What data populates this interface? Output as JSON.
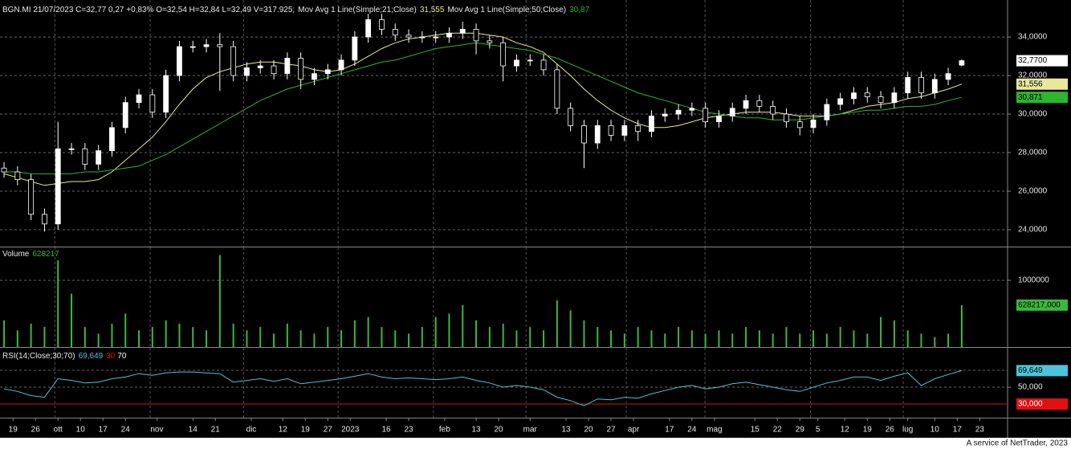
{
  "chart_data": [
    {
      "type": "candlestick",
      "header": "BGN.MI 21/07/2023 C=32,77 0,27 +0,83% O=32,54 H=32,84 L=32,49 V=317.925;",
      "x": [
        0,
        3,
        6,
        9,
        12,
        15,
        18,
        21,
        24,
        27,
        30,
        33,
        36,
        39,
        42,
        45,
        48,
        51,
        54,
        57,
        60,
        63,
        66,
        69,
        72,
        75,
        78,
        81,
        84,
        87,
        90,
        93,
        96,
        99,
        102,
        105,
        108,
        111,
        114,
        117,
        120,
        123,
        126,
        129,
        132,
        135,
        138,
        141,
        144,
        147,
        150,
        153,
        156,
        159,
        162,
        165,
        168,
        171,
        174,
        177,
        180,
        183,
        186,
        189,
        192,
        195,
        198,
        201,
        204,
        207,
        210,
        213
      ],
      "open": [
        27.2,
        27.0,
        26.6,
        24.8,
        24.3,
        28.2,
        28.2,
        27.4,
        28.1,
        29.3,
        30.6,
        31.0,
        30.1,
        32.0,
        33.5,
        33.5,
        33.6,
        33.5,
        32.0,
        32.4,
        32.5,
        32.1,
        32.9,
        31.8,
        32.1,
        32.3,
        32.8,
        34.0,
        34.9,
        34.4,
        34.1,
        34.0,
        34.0,
        34.0,
        34.2,
        34.4,
        33.8,
        33.7,
        32.5,
        32.8,
        32.8,
        32.3,
        30.3,
        29.4,
        28.5,
        29.4,
        28.9,
        29.4,
        29.1,
        29.9,
        30.0,
        30.2,
        30.3,
        29.6,
        29.9,
        30.3,
        30.7,
        30.4,
        30.0,
        29.6,
        29.3,
        29.7,
        30.5,
        30.8,
        31.1,
        30.9,
        30.6,
        31.1,
        31.9,
        31.1,
        31.8,
        32.54
      ],
      "high": [
        27.5,
        27.3,
        26.9,
        25.1,
        29.6,
        28.5,
        28.5,
        28.4,
        29.6,
        30.9,
        31.3,
        31.3,
        32.3,
        33.8,
        33.8,
        33.9,
        34.2,
        33.8,
        32.7,
        32.8,
        32.8,
        33.2,
        33.2,
        32.4,
        32.6,
        33.1,
        34.3,
        35.2,
        35.2,
        34.7,
        34.4,
        34.3,
        34.3,
        34.5,
        34.8,
        34.7,
        34.1,
        34.0,
        33.1,
        33.1,
        33.1,
        32.6,
        30.6,
        29.7,
        29.7,
        29.7,
        29.7,
        29.7,
        30.2,
        30.3,
        30.5,
        30.6,
        30.6,
        30.2,
        30.6,
        31.0,
        31.0,
        30.7,
        30.3,
        29.9,
        30.0,
        30.8,
        31.1,
        31.4,
        31.4,
        31.2,
        31.4,
        32.2,
        32.2,
        32.1,
        32.4,
        32.84
      ],
      "low": [
        26.7,
        26.3,
        24.5,
        23.9,
        24.0,
        27.9,
        27.1,
        27.1,
        27.8,
        29.0,
        30.3,
        29.8,
        29.8,
        31.7,
        33.2,
        33.2,
        31.2,
        31.7,
        31.7,
        32.1,
        31.8,
        31.8,
        31.3,
        31.5,
        31.8,
        32.0,
        32.5,
        33.7,
        34.1,
        33.8,
        33.7,
        33.7,
        33.7,
        33.7,
        33.9,
        33.1,
        33.4,
        31.7,
        32.2,
        32.5,
        32.0,
        30.0,
        29.1,
        27.2,
        28.2,
        28.6,
        28.6,
        28.6,
        28.8,
        29.6,
        29.7,
        29.9,
        29.3,
        29.3,
        29.6,
        30.0,
        30.1,
        29.7,
        29.3,
        28.9,
        29.0,
        29.4,
        30.2,
        30.5,
        30.6,
        30.3,
        30.3,
        30.8,
        30.8,
        30.8,
        31.5,
        32.49
      ],
      "close": [
        27.0,
        26.6,
        24.8,
        24.3,
        28.2,
        28.2,
        27.4,
        28.1,
        29.3,
        30.6,
        31.0,
        30.1,
        32.0,
        33.5,
        33.5,
        33.6,
        33.5,
        32.0,
        32.4,
        32.5,
        32.1,
        32.9,
        31.8,
        32.1,
        32.3,
        32.8,
        34.0,
        34.9,
        34.4,
        34.1,
        34.0,
        34.0,
        34.0,
        34.2,
        34.4,
        33.8,
        33.7,
        32.5,
        32.8,
        32.8,
        32.3,
        30.3,
        29.4,
        28.5,
        29.4,
        28.9,
        29.4,
        29.1,
        29.9,
        30.0,
        30.2,
        30.3,
        29.6,
        29.9,
        30.3,
        30.7,
        30.4,
        30.0,
        29.6,
        29.3,
        29.7,
        30.5,
        30.8,
        31.1,
        30.9,
        30.6,
        31.1,
        31.9,
        31.1,
        31.8,
        32.1,
        32.77
      ],
      "close_last_label": "32,7700",
      "color_up": "#ffffff",
      "color_down": "#000000",
      "series": [
        {
          "name": "Mov Avg 1 Line(Simple;21;Close)",
          "color": "#e8e89a",
          "value_label": "31,555",
          "box_label": "31,556",
          "values": [
            26.9,
            26.7,
            26.5,
            26.3,
            26.4,
            26.5,
            26.5,
            26.6,
            27.0,
            27.6,
            28.2,
            28.8,
            29.6,
            30.5,
            31.3,
            31.9,
            32.2,
            32.4,
            32.6,
            32.7,
            32.7,
            32.6,
            32.5,
            32.3,
            32.2,
            32.3,
            32.6,
            33.0,
            33.4,
            33.7,
            33.9,
            34.0,
            34.1,
            34.2,
            34.2,
            34.2,
            34.1,
            34.0,
            33.7,
            33.5,
            33.2,
            32.6,
            32.0,
            31.3,
            30.7,
            30.2,
            29.8,
            29.5,
            29.3,
            29.3,
            29.4,
            29.6,
            29.8,
            29.9,
            30.0,
            30.1,
            30.1,
            30.1,
            30.0,
            29.9,
            29.9,
            29.9,
            30.0,
            30.2,
            30.4,
            30.5,
            30.6,
            30.8,
            30.9,
            31.1,
            31.3,
            31.555
          ]
        },
        {
          "name": "Mov Avg 1 Line(Simple;50;Close)",
          "color": "#2db52d",
          "value_label": "30,87",
          "box_label": "30,871",
          "values": [
            27.0,
            27.0,
            26.9,
            26.9,
            26.9,
            26.9,
            27.0,
            27.0,
            27.1,
            27.2,
            27.3,
            27.6,
            27.9,
            28.3,
            28.7,
            29.1,
            29.5,
            29.9,
            30.3,
            30.7,
            31.0,
            31.3,
            31.5,
            31.7,
            31.9,
            32.1,
            32.3,
            32.5,
            32.7,
            32.8,
            33.0,
            33.2,
            33.4,
            33.5,
            33.6,
            33.7,
            33.6,
            33.5,
            33.4,
            33.3,
            33.1,
            32.9,
            32.6,
            32.3,
            32.0,
            31.7,
            31.4,
            31.1,
            30.9,
            30.7,
            30.5,
            30.3,
            30.1,
            30.0,
            29.9,
            29.8,
            29.8,
            29.7,
            29.7,
            29.7,
            29.8,
            29.9,
            30.0,
            30.1,
            30.2,
            30.2,
            30.3,
            30.4,
            30.4,
            30.5,
            30.7,
            30.87
          ]
        }
      ],
      "xlim": [
        -0.9,
        223.2
      ],
      "ylim": [
        23.125,
        35.92
      ],
      "yticks": [
        {
          "value": 24,
          "label": "24,0000"
        },
        {
          "value": 26,
          "label": "26,0000"
        },
        {
          "value": 28,
          "label": "28,0000"
        },
        {
          "value": 30,
          "label": "30,0000"
        },
        {
          "value": 32,
          "label": "32,0000"
        },
        {
          "value": 34,
          "label": "34,0000"
        }
      ],
      "grid": true,
      "xgrid": [
        11.3,
        32.5,
        53.3,
        74.3,
        95.5,
        116.1,
        138.4,
        155.9,
        179.4,
        200.0
      ]
    },
    {
      "type": "bar",
      "title": "Volume",
      "value_label": "628217",
      "box_label": "628217,000",
      "color": "#3cb83c",
      "values": [
        400000,
        250000,
        350000,
        300000,
        1300000,
        800000,
        300000,
        200000,
        350000,
        500000,
        250000,
        300000,
        400000,
        350000,
        300000,
        250000,
        1380000,
        350000,
        250000,
        300000,
        200000,
        350000,
        250000,
        200000,
        300000,
        250000,
        400000,
        450000,
        300000,
        250000,
        200000,
        300000,
        450000,
        500000,
        630000,
        400000,
        300000,
        350000,
        250000,
        300000,
        250000,
        700000,
        550000,
        400000,
        300000,
        250000,
        200000,
        300000,
        250000,
        200000,
        300000,
        250000,
        200000,
        250000,
        200000,
        300000,
        250000,
        200000,
        300000,
        200000,
        250000,
        200000,
        300000,
        250000,
        200000,
        450000,
        400000,
        250000,
        200000,
        150000,
        200000,
        628217
      ],
      "ylim": [
        0,
        1494000
      ],
      "yticks": [
        1000000
      ]
    },
    {
      "type": "line",
      "title": "RSI(14;Close;30;70)",
      "color": "#4fc3d9",
      "value_label": "69,649",
      "box_label": "69,649",
      "values": [
        48,
        45,
        40,
        38,
        60,
        58,
        55,
        56,
        60,
        62,
        66,
        64,
        67,
        68,
        68,
        67,
        66,
        56,
        58,
        60,
        57,
        60,
        54,
        56,
        58,
        60,
        63,
        66,
        62,
        60,
        61,
        60,
        59,
        60,
        62,
        58,
        55,
        50,
        52,
        50,
        47,
        38,
        34,
        28,
        36,
        35,
        38,
        37,
        42,
        46,
        50,
        52,
        48,
        50,
        54,
        56,
        53,
        50,
        47,
        45,
        50,
        55,
        58,
        62,
        62,
        58,
        63,
        67,
        52,
        60,
        65,
        69.649
      ],
      "levels": [
        {
          "value": 30,
          "label": "30,000",
          "color": "#e01010"
        },
        {
          "value": 70,
          "label": "70",
          "color": "#ffffff"
        }
      ],
      "ylim": [
        13.8,
        96.7
      ],
      "yticks": [
        {
          "value": 50,
          "label": "50,000"
        }
      ],
      "xticks": [
        {
          "value": 2,
          "label": "19"
        },
        {
          "value": 7,
          "label": "26"
        },
        {
          "value": 12,
          "label": "ott"
        },
        {
          "value": 17,
          "label": "10"
        },
        {
          "value": 22,
          "label": "17"
        },
        {
          "value": 27,
          "label": "24"
        },
        {
          "value": 34,
          "label": "nov"
        },
        {
          "value": 42,
          "label": "14"
        },
        {
          "value": 47,
          "label": "21"
        },
        {
          "value": 55,
          "label": "dic"
        },
        {
          "value": 62,
          "label": "12"
        },
        {
          "value": 67,
          "label": "19"
        },
        {
          "value": 72,
          "label": "27"
        },
        {
          "value": 77,
          "label": "2023"
        },
        {
          "value": 85,
          "label": "16"
        },
        {
          "value": 90,
          "label": "23"
        },
        {
          "value": 98,
          "label": "feb"
        },
        {
          "value": 105,
          "label": "13"
        },
        {
          "value": 110,
          "label": "20"
        },
        {
          "value": 117,
          "label": "mar"
        },
        {
          "value": 125,
          "label": "13"
        },
        {
          "value": 130,
          "label": "20"
        },
        {
          "value": 135,
          "label": "27"
        },
        {
          "value": 140,
          "label": "apr"
        },
        {
          "value": 148,
          "label": "17"
        },
        {
          "value": 153,
          "label": "24"
        },
        {
          "value": 158,
          "label": "mag"
        },
        {
          "value": 167,
          "label": "15"
        },
        {
          "value": 172,
          "label": "22"
        },
        {
          "value": 177,
          "label": "29"
        },
        {
          "value": 181,
          "label": "5"
        },
        {
          "value": 187,
          "label": "12"
        },
        {
          "value": 192,
          "label": "19"
        },
        {
          "value": 197,
          "label": "26"
        },
        {
          "value": 201,
          "label": "lug"
        },
        {
          "value": 207,
          "label": "10"
        },
        {
          "value": 212,
          "label": "17"
        },
        {
          "value": 217,
          "label": "23"
        }
      ]
    }
  ],
  "footer": "A service of NetTrader, 2023"
}
